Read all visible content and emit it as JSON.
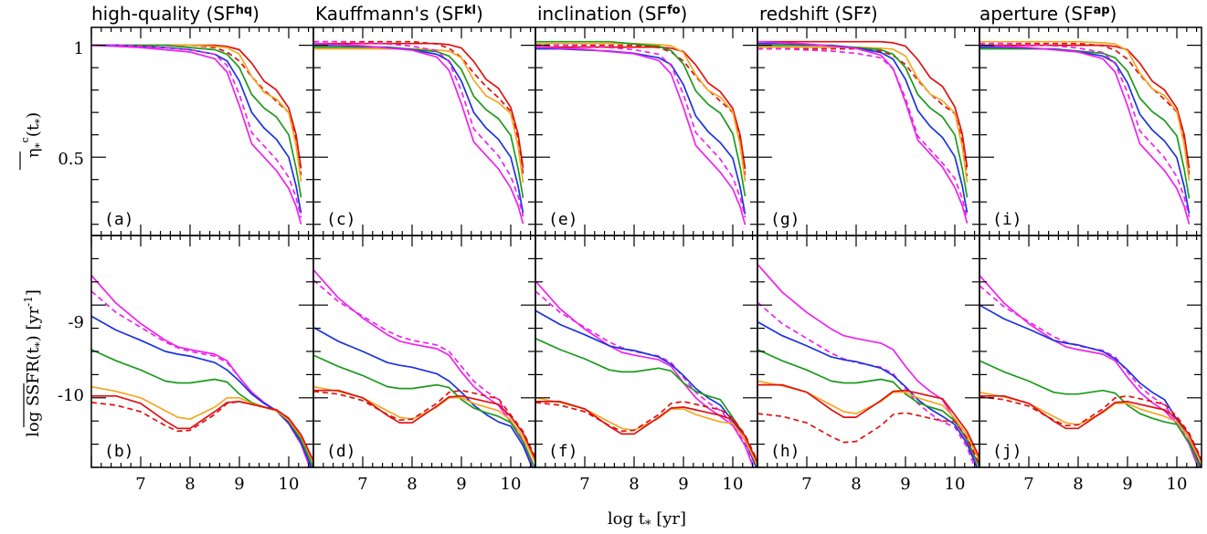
{
  "figure": {
    "xlabel": "log t",
    "xlabel_sub": "*",
    "xlabel_unit": "[yr]",
    "top_ylabel": "η",
    "top_ylabel_suffix": "(t",
    "top_ylabel_tail": ")",
    "bottom_ylabel": "log SSFR(t",
    "bottom_ylabel_tail": ") [yr",
    "bottom_ylabel_exp": "-1",
    "bottom_ylabel_close": "]"
  },
  "columns": [
    {
      "title": "high-quality (SF",
      "sup": "hq",
      "close": ")",
      "top_label": "(a)",
      "bottom_label": "(b)"
    },
    {
      "title": "Kauffmann's (SF",
      "sup": "kl",
      "close": ")",
      "top_label": "(c)",
      "bottom_label": "(d)"
    },
    {
      "title": "inclination (SF",
      "sup": "fo",
      "close": ")",
      "top_label": "(e)",
      "bottom_label": "(f)"
    },
    {
      "title": "redshift (SF",
      "sup": "z",
      "close": ")",
      "top_label": "(g)",
      "bottom_label": "(h)"
    },
    {
      "title": "aperture (SF",
      "sup": "ap",
      "close": ")",
      "top_label": "(i)",
      "bottom_label": "(j)"
    }
  ],
  "colors": {
    "magenta": "#ee22ee",
    "blue": "#1a33dd",
    "green": "#1c9a1c",
    "orange": "#f5a623",
    "red": "#e01010"
  },
  "chart_data": [
    {
      "type": "line",
      "panel": "top",
      "x_ticks": [
        7,
        8,
        9,
        10
      ],
      "y_ticks": [
        0.5,
        1
      ],
      "xlim": [
        6,
        10.5
      ],
      "ylim": [
        0.15,
        1.08
      ],
      "x": [
        6.0,
        6.5,
        7.0,
        7.5,
        8.0,
        8.5,
        8.75,
        9.0,
        9.25,
        9.5,
        9.75,
        10.0,
        10.15,
        10.25
      ],
      "series": [
        {
          "color": "red",
          "style": "solid",
          "values": [
            1.0,
            1.0,
            1.0,
            1.0,
            1.0,
            1.0,
            0.995,
            0.98,
            0.92,
            0.84,
            0.8,
            0.72,
            0.6,
            0.45
          ]
        },
        {
          "color": "red",
          "style": "dashed",
          "values": [
            1.0,
            1.0,
            1.0,
            1.0,
            1.0,
            0.99,
            0.97,
            0.93,
            0.86,
            0.8,
            0.75,
            0.7,
            0.58,
            0.42
          ]
        },
        {
          "color": "orange",
          "style": "solid",
          "values": [
            1.0,
            1.0,
            1.0,
            1.0,
            1.0,
            0.995,
            0.99,
            0.96,
            0.86,
            0.79,
            0.76,
            0.7,
            0.55,
            0.39
          ]
        },
        {
          "color": "green",
          "style": "solid",
          "values": [
            1.0,
            1.0,
            1.0,
            1.0,
            0.99,
            0.98,
            0.96,
            0.9,
            0.78,
            0.72,
            0.68,
            0.6,
            0.45,
            0.32
          ]
        },
        {
          "color": "blue",
          "style": "solid",
          "values": [
            1.0,
            1.0,
            0.995,
            0.99,
            0.98,
            0.96,
            0.93,
            0.84,
            0.7,
            0.63,
            0.58,
            0.5,
            0.37,
            0.25
          ]
        },
        {
          "color": "magenta",
          "style": "solid",
          "values": [
            1.0,
            0.995,
            0.99,
            0.98,
            0.97,
            0.94,
            0.88,
            0.73,
            0.56,
            0.5,
            0.44,
            0.36,
            0.28,
            0.2
          ]
        },
        {
          "color": "magenta",
          "style": "dashed",
          "values": [
            1.0,
            1.0,
            0.995,
            0.99,
            0.98,
            0.96,
            0.91,
            0.78,
            0.61,
            0.55,
            0.49,
            0.41,
            0.32,
            0.23
          ]
        }
      ]
    },
    {
      "type": "line",
      "panel": "bottom",
      "x_ticks": [
        7,
        8,
        9,
        10
      ],
      "y_ticks": [
        -10,
        -9
      ],
      "xlim": [
        6,
        10.5
      ],
      "ylim": [
        -10.75,
        -8.25
      ],
      "x": [
        6.0,
        6.5,
        7.0,
        7.5,
        7.75,
        8.0,
        8.5,
        8.75,
        9.0,
        9.25,
        9.5,
        9.75,
        10.0,
        10.25,
        10.5
      ],
      "series": [
        {
          "color": "magenta",
          "style": "solid",
          "values": [
            -8.68,
            -8.98,
            -9.2,
            -9.38,
            -9.45,
            -9.48,
            -9.53,
            -9.6,
            -9.78,
            -9.94,
            -10.05,
            -10.14,
            -10.28,
            -10.5,
            -10.85
          ]
        },
        {
          "color": "magenta",
          "style": "dashed",
          "values": [
            -8.85,
            -9.08,
            -9.24,
            -9.4,
            -9.46,
            -9.5,
            -9.55,
            -9.62,
            -9.78,
            -9.94,
            -10.05,
            -10.14,
            -10.28,
            -10.5,
            -10.85
          ]
        },
        {
          "color": "blue",
          "style": "solid",
          "values": [
            -9.12,
            -9.27,
            -9.38,
            -9.5,
            -9.53,
            -9.55,
            -9.62,
            -9.7,
            -9.82,
            -9.96,
            -10.06,
            -10.14,
            -10.27,
            -10.48,
            -10.8
          ]
        },
        {
          "color": "green",
          "style": "solid",
          "values": [
            -9.48,
            -9.6,
            -9.7,
            -9.82,
            -9.84,
            -9.84,
            -9.8,
            -9.83,
            -9.96,
            -10.05,
            -10.1,
            -10.14,
            -10.25,
            -10.45,
            -10.75
          ]
        },
        {
          "color": "orange",
          "style": "solid",
          "values": [
            -9.88,
            -9.93,
            -10.0,
            -10.14,
            -10.21,
            -10.23,
            -10.1,
            -10.0,
            -10.0,
            -10.06,
            -10.1,
            -10.14,
            -10.24,
            -10.42,
            -10.7
          ]
        },
        {
          "color": "red",
          "style": "solid",
          "values": [
            -9.98,
            -9.98,
            -10.06,
            -10.25,
            -10.33,
            -10.33,
            -10.15,
            -10.05,
            -10.04,
            -10.07,
            -10.1,
            -10.13,
            -10.22,
            -10.4,
            -10.68
          ]
        },
        {
          "color": "red",
          "style": "dashed",
          "values": [
            -10.05,
            -10.08,
            -10.15,
            -10.3,
            -10.36,
            -10.35,
            -10.18,
            -10.06,
            -10.04,
            -10.07,
            -10.1,
            -10.13,
            -10.22,
            -10.4,
            -10.68
          ]
        }
      ]
    }
  ]
}
